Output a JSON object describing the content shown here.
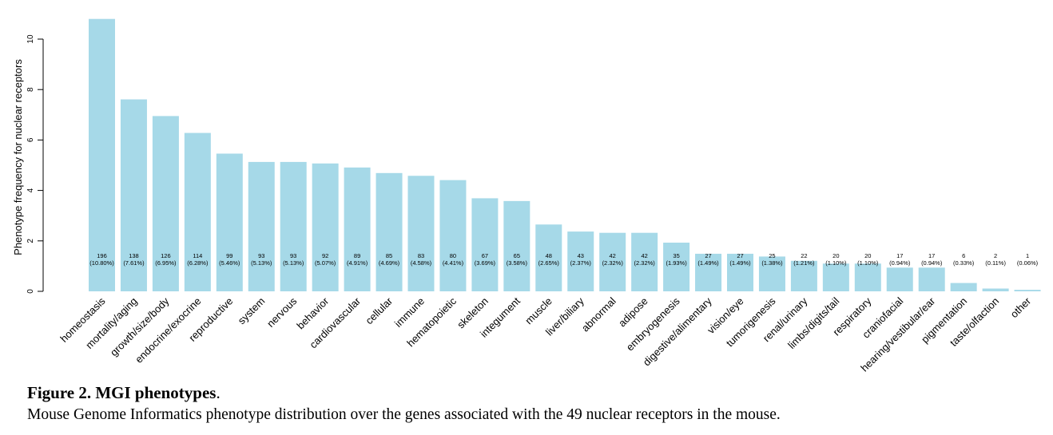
{
  "chart_data": {
    "type": "bar",
    "ylabel": "Phenotype frequency for nuclear receptors",
    "ylim": [
      0,
      11
    ],
    "yticks": [
      0,
      2,
      4,
      6,
      8,
      10
    ],
    "bar_color": "#a6d9e8",
    "categories": [
      "homeostasis",
      "mortality/aging",
      "growth/size/body",
      "endocrine/exocrine",
      "reproductive",
      "system",
      "nervous",
      "behavior",
      "cardiovascular",
      "cellular",
      "immune",
      "hematopoietic",
      "skeleton",
      "integument",
      "muscle",
      "liver/biliary",
      "abnormal",
      "adipose",
      "embryogenesis",
      "digestive/alimentary",
      "vision/eye",
      "tumorigenesis",
      "renal/urinary",
      "limbs/digits/tail",
      "respiratory",
      "craniofacial",
      "hearing/vestibular/ear",
      "pigmentation",
      "taste/olfaction",
      "other"
    ],
    "values": [
      10.8,
      7.61,
      6.95,
      6.28,
      5.46,
      5.13,
      5.13,
      5.07,
      4.91,
      4.69,
      4.58,
      4.41,
      3.69,
      3.58,
      2.65,
      2.37,
      2.32,
      2.32,
      1.93,
      1.49,
      1.49,
      1.38,
      1.21,
      1.1,
      1.1,
      0.94,
      0.94,
      0.33,
      0.11,
      0.06
    ],
    "counts": [
      "196",
      "138",
      "126",
      "114",
      "99",
      "93",
      "93",
      "92",
      "89",
      "85",
      "83",
      "80",
      "67",
      "65",
      "48",
      "43",
      "42",
      "42",
      "35",
      "27",
      "27",
      "25",
      "22",
      "20",
      "20",
      "17",
      "17",
      "6",
      "2",
      "1"
    ],
    "percent_labels": [
      "(10.80%)",
      "(7.61%)",
      "(6.95%)",
      "(6.28%)",
      "(5.46%)",
      "(5.13%)",
      "(5.13%)",
      "(5.07%)",
      "(4.91%)",
      "(4.69%)",
      "(4.58%)",
      "(4.41%)",
      "(3.69%)",
      "(3.58%)",
      "(2.65%)",
      "(2.37%)",
      "(2.32%)",
      "(2.32%)",
      "(1.93%)",
      "(1.49%)",
      "(1.49%)",
      "(1.38%)",
      "(1.21%)",
      "(1.10%)",
      "(1.10%)",
      "(0.94%)",
      "(0.94%)",
      "(0.33%)",
      "(0.11%)",
      "(0.06%)"
    ]
  },
  "caption": {
    "label": "Figure 2. MGI phenotypes",
    "label_suffix": ".",
    "text": "Mouse Genome Informatics phenotype distribution over the genes associated with the 49 nuclear receptors in the mouse."
  }
}
